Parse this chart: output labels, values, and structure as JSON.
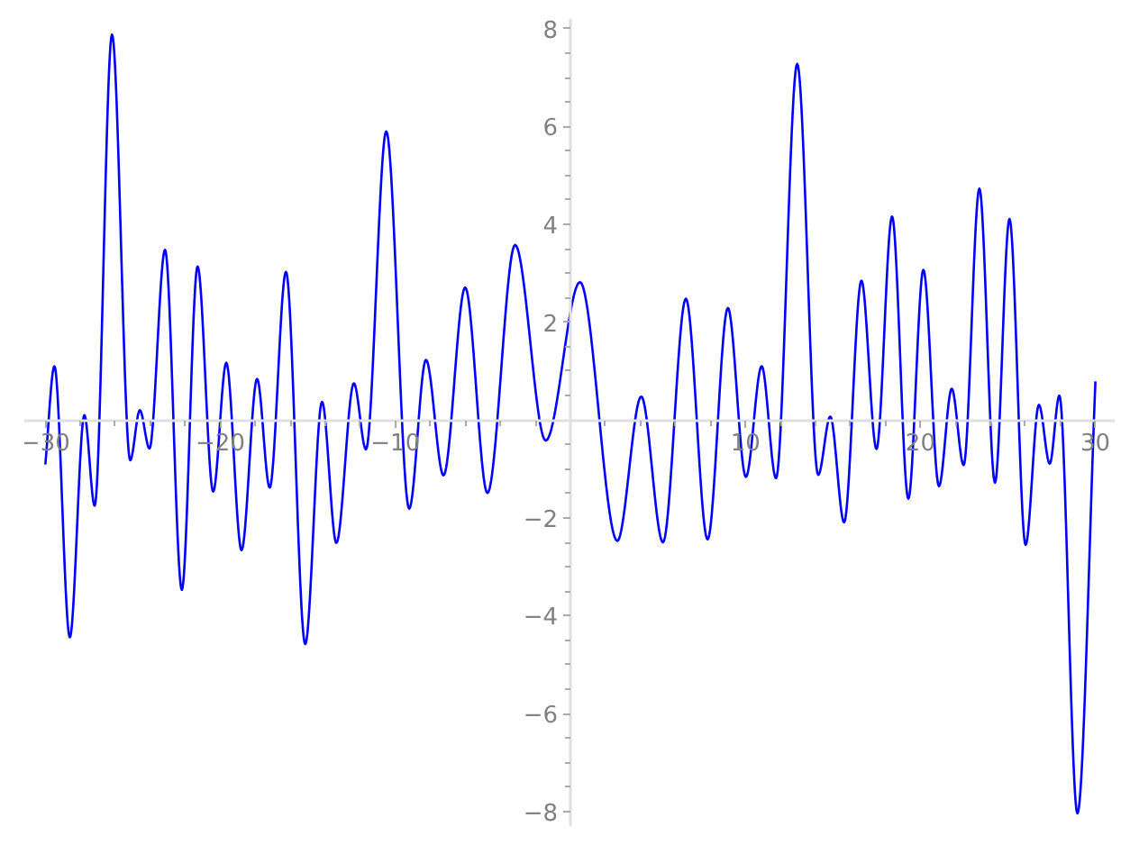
{
  "chart_data": {
    "type": "line",
    "color": "#0000ff",
    "x": [
      -30.0,
      -29.48,
      -28.6,
      -27.77,
      -27.18,
      -26.19,
      -25.15,
      -24.6,
      -24.05,
      -23.16,
      -22.2,
      -21.3,
      -20.41,
      -19.66,
      -18.79,
      -17.9,
      -17.18,
      -16.25,
      -15.15,
      -14.19,
      -13.37,
      -12.37,
      -11.68,
      -10.52,
      -9.21,
      -8.25,
      -7.25,
      -6.01,
      -4.74,
      -3.16,
      -1.41,
      0.55,
      2.68,
      4.05,
      5.29,
      6.6,
      7.84,
      9.0,
      10.03,
      10.93,
      11.75,
      12.96,
      14.16,
      14.85,
      15.64,
      16.63,
      17.49,
      18.38,
      19.31,
      20.17,
      21.06,
      21.79,
      22.47,
      23.37,
      24.26,
      25.09,
      26.01,
      26.77,
      27.39,
      27.94,
      28.97,
      30.0
    ],
    "values": [
      -0.91,
      1.1,
      -4.44,
      0.1,
      -1.75,
      7.88,
      -0.82,
      0.2,
      -0.58,
      3.48,
      -3.47,
      3.14,
      -1.46,
      1.17,
      -2.66,
      0.84,
      -1.38,
      3.03,
      -4.58,
      0.37,
      -2.51,
      0.75,
      -0.6,
      5.9,
      -1.81,
      1.23,
      -1.13,
      2.71,
      -1.49,
      3.58,
      -0.42,
      2.82,
      -2.47,
      0.48,
      -2.5,
      2.48,
      -2.44,
      2.29,
      -1.16,
      1.1,
      -1.19,
      7.28,
      -1.12,
      0.07,
      -2.09,
      2.85,
      -0.59,
      4.16,
      -1.61,
      3.07,
      -1.35,
      0.64,
      -0.92,
      4.73,
      -1.28,
      4.11,
      -2.55,
      0.31,
      -0.89,
      0.5,
      -8.04,
      0.79
    ],
    "xlim": [
      -31.2,
      31.1
    ],
    "ylim": [
      -8.3,
      8.2
    ],
    "xticks": [
      {
        "value": -30,
        "label": "−30"
      },
      {
        "value": -28,
        "label": null
      },
      {
        "value": -26,
        "label": null
      },
      {
        "value": -24,
        "label": null
      },
      {
        "value": -22,
        "label": null
      },
      {
        "value": -20,
        "label": "−20"
      },
      {
        "value": -18,
        "label": null
      },
      {
        "value": -16,
        "label": null
      },
      {
        "value": -14,
        "label": null
      },
      {
        "value": -12,
        "label": null
      },
      {
        "value": -10,
        "label": "−10"
      },
      {
        "value": -8,
        "label": null
      },
      {
        "value": -6,
        "label": null
      },
      {
        "value": -4,
        "label": null
      },
      {
        "value": -2,
        "label": null
      },
      {
        "value": 2,
        "label": null
      },
      {
        "value": 4,
        "label": null
      },
      {
        "value": 6,
        "label": null
      },
      {
        "value": 8,
        "label": null
      },
      10,
      {
        "value": 12,
        "label": null
      },
      {
        "value": 14,
        "label": null
      },
      {
        "value": 16,
        "label": null
      },
      {
        "value": 18,
        "label": null
      },
      20,
      {
        "value": 22,
        "label": null
      },
      {
        "value": 24,
        "label": null
      },
      {
        "value": 26,
        "label": null
      },
      {
        "value": 28,
        "label": null
      },
      30
    ],
    "yticks": [
      {
        "value": -8,
        "label": "−8"
      },
      {
        "value": -7.5,
        "label": null
      },
      {
        "value": -7,
        "label": null
      },
      {
        "value": -6.5,
        "label": null
      },
      {
        "value": -6,
        "label": "−6"
      },
      {
        "value": -5.5,
        "label": null
      },
      {
        "value": -5,
        "label": null
      },
      {
        "value": -4.5,
        "label": null
      },
      {
        "value": -4,
        "label": "−4"
      },
      {
        "value": -3.5,
        "label": null
      },
      {
        "value": -3,
        "label": null
      },
      {
        "value": -2.5,
        "label": null
      },
      {
        "value": -2,
        "label": "−2"
      },
      {
        "value": -1.5,
        "label": null
      },
      {
        "value": -1,
        "label": null
      },
      {
        "value": -0.5,
        "label": null
      },
      {
        "value": 0.5,
        "label": null
      },
      {
        "value": 1,
        "label": null
      },
      {
        "value": 1.5,
        "label": null
      },
      2,
      {
        "value": 2.5,
        "label": null
      },
      {
        "value": 3,
        "label": null
      },
      {
        "value": 3.5,
        "label": null
      },
      4,
      {
        "value": 4.5,
        "label": null
      },
      {
        "value": 5,
        "label": null
      },
      {
        "value": 5.5,
        "label": null
      },
      6,
      {
        "value": 6.5,
        "label": null
      },
      {
        "value": 7,
        "label": null
      },
      {
        "value": 7.5,
        "label": null
      },
      8
    ]
  }
}
